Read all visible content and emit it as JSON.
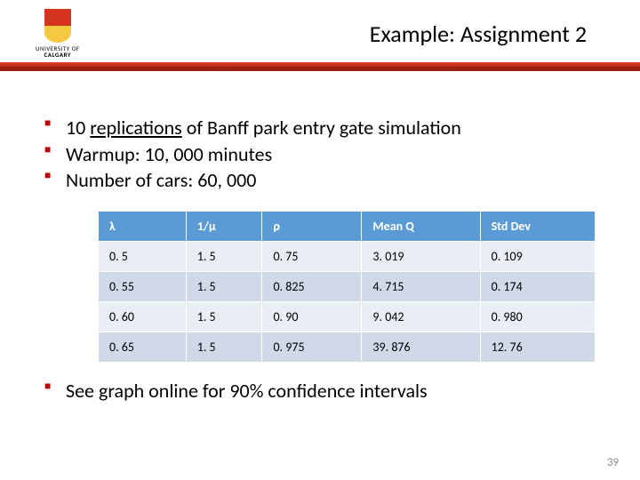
{
  "logo": {
    "university": "UNIVERSITY OF",
    "name": "CALGARY"
  },
  "title": "Example: Assignment 2",
  "bullets_top": [
    {
      "pre": "10 ",
      "u": "replications",
      "post": " of Banff park entry gate simulation"
    },
    {
      "pre": "Warmup: 10, 000 minutes",
      "u": "",
      "post": ""
    },
    {
      "pre": "Number of cars: 60, 000",
      "u": "",
      "post": ""
    }
  ],
  "table": {
    "columns": [
      "λ",
      "1/μ",
      "ρ",
      "Mean Q",
      "Std Dev"
    ],
    "rows": [
      [
        "0. 5",
        "1. 5",
        "0. 75",
        "3. 019",
        "0. 109"
      ],
      [
        "0. 55",
        "1. 5",
        "0. 825",
        "4. 715",
        "0. 174"
      ],
      [
        "0. 60",
        "1. 5",
        "0. 90",
        "9. 042",
        "0. 980"
      ],
      [
        "0. 65",
        "1. 5",
        "0. 975",
        "39. 876",
        "12. 76"
      ]
    ],
    "header_bg": "#5b9bd5",
    "header_fg": "#ffffff",
    "row_odd_bg": "#e9eef5",
    "row_even_bg": "#d0d9e8",
    "fontsize": 14
  },
  "bullets_bottom": [
    {
      "pre": "See graph online for 90% confidence intervals",
      "u": "",
      "post": ""
    }
  ],
  "page_number": "39",
  "colors": {
    "bullet_marker": "#c00000",
    "redbar_top": "#e63e2a",
    "redbar_bottom": "#b82a18",
    "background": "#ffffff"
  }
}
